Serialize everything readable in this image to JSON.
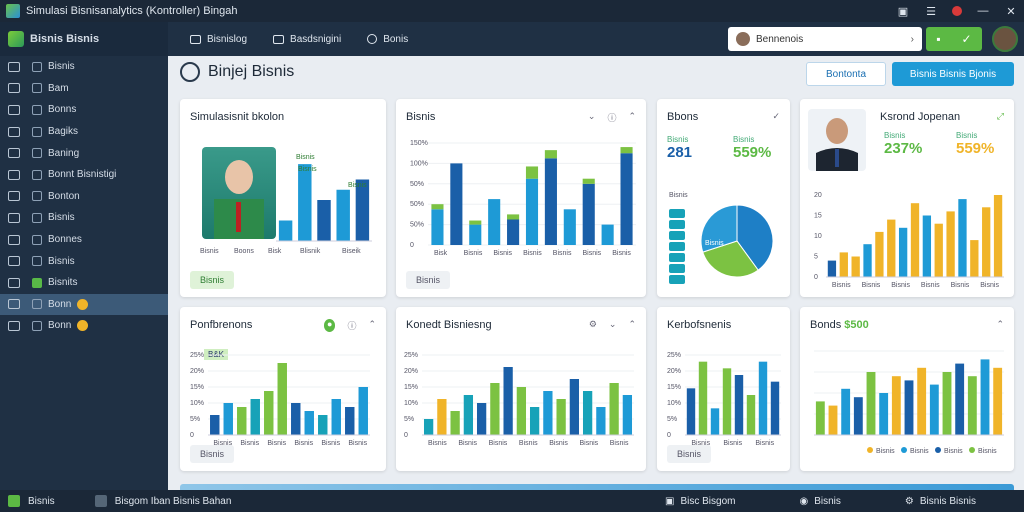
{
  "window": {
    "title": "Simulasi Bisnisanalytics  (Kontroller)  Bingah",
    "controls": [
      "lock-icon",
      "menu-icon",
      "rec-icon",
      "minimize-icon",
      "close-icon"
    ]
  },
  "sidebar": {
    "brand": "Bisnis Bisnis",
    "items": [
      {
        "label": "Bisnis",
        "icon": "chevron-icon",
        "active": false
      },
      {
        "label": "Bam",
        "icon": "grid-icon",
        "active": false
      },
      {
        "label": "Bonns",
        "icon": "table-icon",
        "active": false
      },
      {
        "label": "Bagiks",
        "icon": "asterisk-icon",
        "active": false
      },
      {
        "label": "Baning",
        "icon": "search-icon",
        "active": false
      },
      {
        "label": "Bonnt Bisnistigi",
        "icon": "folder-icon",
        "active": false
      },
      {
        "label": "Bonton",
        "icon": "play-icon",
        "active": false
      },
      {
        "label": "Bisnis",
        "icon": "pencil-icon",
        "active": false
      },
      {
        "label": "Bonnes",
        "icon": "square-icon",
        "active": false
      },
      {
        "label": "Bisnis",
        "icon": "document-icon",
        "active": false
      },
      {
        "label": "Bisnits",
        "icon": "chart-icon",
        "active": false
      },
      {
        "label": "Bonn",
        "icon": "circle-icon",
        "active": true
      },
      {
        "label": "Bonn",
        "icon": "heart-icon",
        "active": false
      }
    ]
  },
  "toolbar": {
    "buttons": [
      {
        "label": "Bisnislog",
        "icon": "monitor-icon"
      },
      {
        "label": "Basdsnigini",
        "icon": "calendar-icon"
      },
      {
        "label": "Bonis",
        "icon": "gear-icon"
      }
    ],
    "search_value": "Bennenois"
  },
  "page": {
    "title": "Binjej Bisnis",
    "btn_outline": "Bontonta",
    "btn_primary": "Bisnis Bisnis Bjonis"
  },
  "cards": {
    "c1": {
      "title": "Simulasisnit bkolon",
      "labels": [
        "Bisnis",
        "Boons",
        "Bisk",
        "Blisnik",
        "Biseik"
      ],
      "bar_labels": [
        "Bisnis",
        "Bisnis",
        "Bisnis"
      ],
      "footer": "Bisnis"
    },
    "c2": {
      "title": "Bisnis",
      "yticks": [
        "0",
        "50%",
        "50%",
        "50%",
        "100%",
        "150%"
      ],
      "xlabels": [
        "Bisk",
        "Bisnis",
        "Bisnis",
        "Bisnis",
        "Bisnis",
        "Bisnis",
        "Bisnis"
      ],
      "footer": "Bisnis"
    },
    "c3": {
      "title": "Bbons",
      "kpis": [
        {
          "lbl": "Bisnis",
          "val": "281"
        },
        {
          "lbl": "Bisnis",
          "val": "559%"
        }
      ],
      "donut_label": "Bisnis",
      "legend": [
        "Bisnis",
        "Bisnis",
        "Bisnis",
        "Bisnis",
        "Bisnis",
        "Bisnis",
        "Bisnis"
      ]
    },
    "c4": {
      "title": "Ksrond Jopenan",
      "kpis": [
        {
          "lbl": "Bisnis",
          "val": "237%"
        },
        {
          "lbl": "Bisnis",
          "val": "559%"
        }
      ],
      "xlabels": [
        "Bisnis",
        "Bisnis",
        "Bisnis",
        "Bisnis",
        "Bisnis",
        "Bisnis"
      ]
    },
    "c5": {
      "title": "Ponfbrenons",
      "tag": "B&K",
      "yticks": [
        "0",
        "5%",
        "10%",
        "15%",
        "20%",
        "25%"
      ],
      "xlabels": [
        "Bisnis",
        "Bisnis",
        "Bisnis",
        "Bisnis",
        "Bisnis",
        "Bisnis"
      ],
      "footer": "Bisnis"
    },
    "c6": {
      "title": "Konedt Bisniesng",
      "yticks": [
        "0",
        "5%",
        "10%",
        "15%",
        "20%",
        "25%"
      ],
      "xlabels": [
        "Bisnis",
        "Bisnis",
        "Bisnis",
        "Bisnis",
        "Bisnis",
        "Bisnis",
        "Bisnis"
      ]
    },
    "c7": {
      "title": "Kerbofsnenis",
      "yticks": [
        "0",
        "5%",
        "10%",
        "15%",
        "20%",
        "25%"
      ],
      "xlabels": [
        "Bisnis",
        "Bisnis",
        "Bisnis"
      ],
      "footer": "Bisnis"
    },
    "c8": {
      "title": "Bonds",
      "title_value": "$500",
      "legend": [
        "Bisnis",
        "Bisnis",
        "Bisnis",
        "Bisnis"
      ],
      "legend_colors": [
        "#f0b429",
        "#1e9ad6",
        "#1a5fa8",
        "#7cc242"
      ]
    }
  },
  "chart_data": [
    {
      "type": "bar",
      "series": [
        {
          "values": [
            4,
            15,
            8,
            10,
            12
          ]
        }
      ]
    },
    {
      "type": "bar",
      "series": [
        {
          "values": [
            35,
            80,
            20,
            45,
            25,
            65,
            85,
            35,
            60,
            20,
            90
          ]
        },
        {
          "values": [
            5,
            0,
            4,
            0,
            5,
            12,
            8,
            0,
            5,
            0,
            6
          ]
        }
      ]
    },
    {
      "type": "pie",
      "values": [
        40,
        30,
        30
      ],
      "colors": [
        "#1e7fc6",
        "#7cc242",
        "#2a9ad6"
      ]
    },
    {
      "type": "bar",
      "values": [
        20,
        30,
        25,
        40,
        55,
        70,
        60,
        90,
        75,
        65,
        80,
        95,
        45,
        85,
        100
      ]
    },
    {
      "type": "bar",
      "values": [
        25,
        40,
        35,
        45,
        55,
        90,
        40,
        30,
        25,
        45,
        35,
        60
      ]
    },
    {
      "type": "bar",
      "values": [
        20,
        45,
        30,
        50,
        40,
        65,
        85,
        60,
        35,
        55,
        45,
        70,
        55,
        35,
        65,
        50
      ]
    },
    {
      "type": "bar",
      "values": [
        35,
        55,
        20,
        50,
        45,
        30,
        55,
        40
      ]
    },
    {
      "type": "bar",
      "values": [
        40,
        35,
        55,
        45,
        75,
        50,
        70,
        65,
        80,
        60,
        75,
        85,
        70,
        90,
        80
      ]
    }
  ]
}
